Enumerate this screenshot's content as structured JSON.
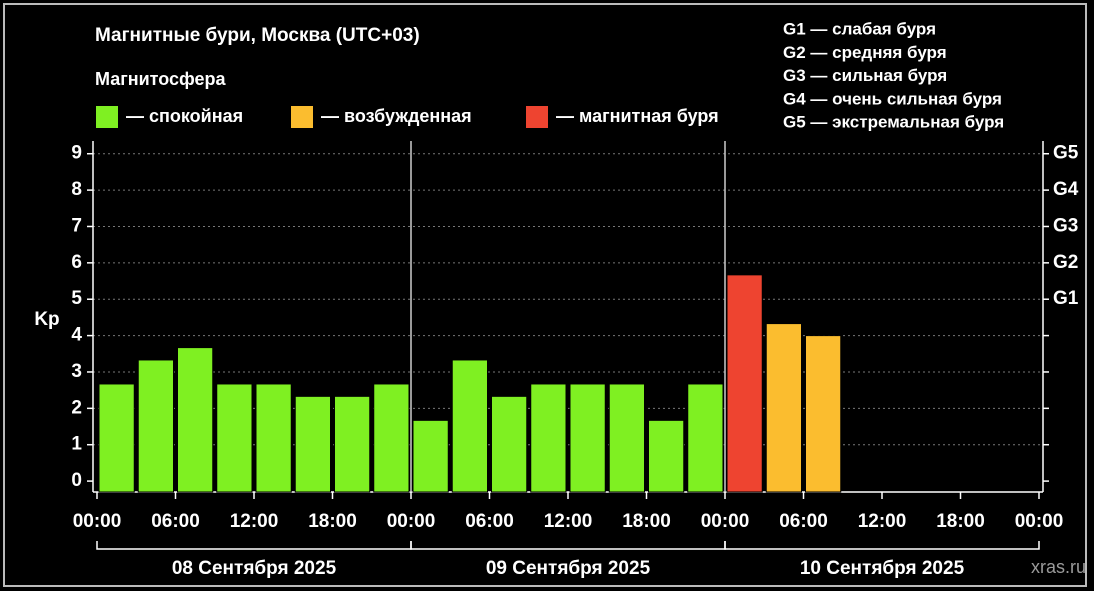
{
  "chart_data": {
    "type": "bar",
    "title": "Магнитные бури, Москва (UTC+03)",
    "legend_title": "Магнитосфера",
    "ylabel": "Kp",
    "x": [
      0,
      3,
      6,
      9,
      12,
      15,
      18,
      21,
      24,
      27,
      30,
      33,
      36,
      39,
      42,
      45,
      48,
      51,
      54,
      57,
      60,
      63,
      66,
      69
    ],
    "bar_width": 3,
    "series": [
      {
        "name": "— спокойная",
        "color": "#7ff022",
        "values": [
          2.67,
          3.33,
          3.67,
          2.67,
          2.67,
          2.33,
          2.33,
          2.67,
          1.67,
          3.33,
          2.33,
          2.67,
          2.67,
          2.67,
          1.67,
          2.67,
          null,
          null,
          null,
          null,
          null,
          null,
          null,
          null
        ]
      },
      {
        "name": "— возбужденная",
        "color": "#fbbd2f",
        "values": [
          null,
          null,
          null,
          null,
          null,
          null,
          null,
          null,
          null,
          null,
          null,
          null,
          null,
          null,
          null,
          null,
          null,
          4.33,
          4.0,
          null,
          null,
          null,
          null,
          null
        ]
      },
      {
        "name": "— магнитная буря",
        "color": "#ee4430",
        "values": [
          null,
          null,
          null,
          null,
          null,
          null,
          null,
          null,
          null,
          null,
          null,
          null,
          null,
          null,
          null,
          null,
          5.67,
          null,
          null,
          null,
          null,
          null,
          null,
          null
        ]
      }
    ],
    "xlim": [
      0,
      72
    ],
    "xticks": [
      {
        "value": 0,
        "label": "00:00"
      },
      {
        "value": 6,
        "label": "06:00"
      },
      {
        "value": 12,
        "label": "12:00"
      },
      {
        "value": 18,
        "label": "18:00"
      },
      {
        "value": 24,
        "label": "00:00"
      },
      {
        "value": 30,
        "label": "06:00"
      },
      {
        "value": 36,
        "label": "12:00"
      },
      {
        "value": 42,
        "label": "18:00"
      },
      {
        "value": 48,
        "label": "00:00"
      },
      {
        "value": 54,
        "label": "06:00"
      },
      {
        "value": 60,
        "label": "12:00"
      },
      {
        "value": 66,
        "label": "18:00"
      },
      {
        "value": 72,
        "label": "00:00"
      }
    ],
    "day_boundaries": [
      24,
      48
    ],
    "x_groups": [
      "08 Сентября 2025",
      "09 Сентября 2025",
      "10 Сентября 2025"
    ],
    "ylim": [
      -0.3,
      9.35
    ],
    "yticks": [
      0,
      1,
      2,
      3,
      4,
      5,
      6,
      7,
      8,
      9
    ],
    "y2ticks": [
      {
        "value": 5,
        "label": "G1"
      },
      {
        "value": 6,
        "label": "G2"
      },
      {
        "value": 7,
        "label": "G3"
      },
      {
        "value": 8,
        "label": "G4"
      },
      {
        "value": 9,
        "label": "G5"
      }
    ],
    "grid": true,
    "g_legend": [
      "G1 — слабая буря",
      "G2 — средняя буря",
      "G3 — сильная буря",
      "G4 — очень сильная буря",
      "G5 — экстремальная буря"
    ],
    "watermark": "xras.ru"
  }
}
